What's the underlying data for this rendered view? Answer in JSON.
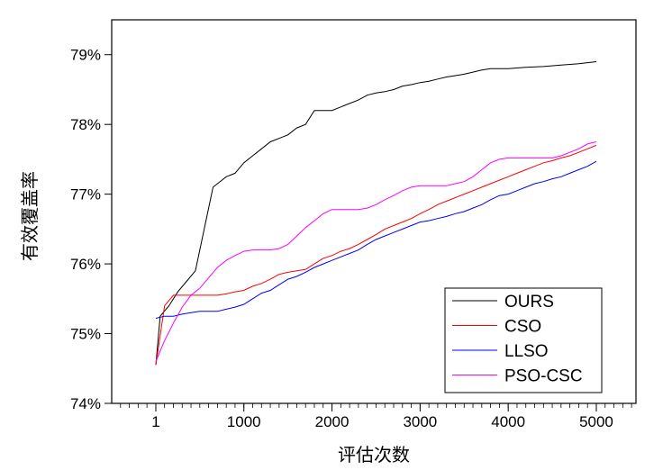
{
  "chart_data": {
    "type": "line",
    "title": "",
    "xlabel": "评估次数",
    "ylabel": "有效覆盖率",
    "xlim": [
      -500,
      5450
    ],
    "ylim": [
      74,
      79.5
    ],
    "x_ticks": [
      1,
      1000,
      2000,
      3000,
      4000,
      5000
    ],
    "x_tick_labels": [
      "1",
      "1000",
      "2000",
      "3000",
      "4000",
      "5000"
    ],
    "y_ticks": [
      74,
      75,
      76,
      77,
      78,
      79
    ],
    "y_tick_labels": [
      "74%",
      "75%",
      "76%",
      "77%",
      "78%",
      "79%"
    ],
    "grid": false,
    "legend_position": "bottom-right",
    "series": [
      {
        "name": "OURS",
        "color": "#000000",
        "points": [
          [
            1,
            74.55
          ],
          [
            50,
            75.25
          ],
          [
            150,
            75.4
          ],
          [
            250,
            75.6
          ],
          [
            350,
            75.75
          ],
          [
            450,
            75.9
          ],
          [
            500,
            76.2
          ],
          [
            550,
            76.5
          ],
          [
            600,
            76.8
          ],
          [
            650,
            77.1
          ],
          [
            700,
            77.15
          ],
          [
            750,
            77.2
          ],
          [
            800,
            77.25
          ],
          [
            900,
            77.3
          ],
          [
            1000,
            77.45
          ],
          [
            1100,
            77.55
          ],
          [
            1200,
            77.65
          ],
          [
            1300,
            77.75
          ],
          [
            1400,
            77.8
          ],
          [
            1500,
            77.85
          ],
          [
            1600,
            77.95
          ],
          [
            1700,
            78.0
          ],
          [
            1800,
            78.2
          ],
          [
            1900,
            78.2
          ],
          [
            2000,
            78.2
          ],
          [
            2100,
            78.25
          ],
          [
            2200,
            78.3
          ],
          [
            2300,
            78.35
          ],
          [
            2400,
            78.42
          ],
          [
            2500,
            78.45
          ],
          [
            2600,
            78.47
          ],
          [
            2700,
            78.5
          ],
          [
            2800,
            78.55
          ],
          [
            2900,
            78.57
          ],
          [
            3000,
            78.6
          ],
          [
            3100,
            78.62
          ],
          [
            3200,
            78.65
          ],
          [
            3300,
            78.68
          ],
          [
            3400,
            78.7
          ],
          [
            3500,
            78.72
          ],
          [
            3600,
            78.75
          ],
          [
            3700,
            78.78
          ],
          [
            3800,
            78.8
          ],
          [
            3900,
            78.8
          ],
          [
            4000,
            78.8
          ],
          [
            4200,
            78.82
          ],
          [
            4400,
            78.83
          ],
          [
            4600,
            78.85
          ],
          [
            4800,
            78.87
          ],
          [
            5000,
            78.9
          ]
        ]
      },
      {
        "name": "CSO",
        "color": "#ff0000",
        "points": [
          [
            1,
            74.55
          ],
          [
            100,
            75.4
          ],
          [
            200,
            75.55
          ],
          [
            300,
            75.55
          ],
          [
            400,
            75.55
          ],
          [
            500,
            75.55
          ],
          [
            600,
            75.55
          ],
          [
            700,
            75.55
          ],
          [
            800,
            75.57
          ],
          [
            900,
            75.6
          ],
          [
            1000,
            75.62
          ],
          [
            1100,
            75.68
          ],
          [
            1200,
            75.72
          ],
          [
            1300,
            75.78
          ],
          [
            1400,
            75.85
          ],
          [
            1500,
            75.88
          ],
          [
            1600,
            75.9
          ],
          [
            1700,
            75.92
          ],
          [
            1800,
            76.0
          ],
          [
            1900,
            76.08
          ],
          [
            2000,
            76.12
          ],
          [
            2100,
            76.18
          ],
          [
            2200,
            76.22
          ],
          [
            2300,
            76.28
          ],
          [
            2400,
            76.35
          ],
          [
            2500,
            76.42
          ],
          [
            2600,
            76.5
          ],
          [
            2700,
            76.55
          ],
          [
            2800,
            76.6
          ],
          [
            2900,
            76.65
          ],
          [
            3000,
            76.72
          ],
          [
            3100,
            76.78
          ],
          [
            3200,
            76.85
          ],
          [
            3300,
            76.9
          ],
          [
            3400,
            76.95
          ],
          [
            3500,
            77.0
          ],
          [
            3600,
            77.05
          ],
          [
            3700,
            77.1
          ],
          [
            3800,
            77.15
          ],
          [
            3900,
            77.2
          ],
          [
            4000,
            77.25
          ],
          [
            4100,
            77.3
          ],
          [
            4200,
            77.35
          ],
          [
            4300,
            77.4
          ],
          [
            4400,
            77.45
          ],
          [
            4500,
            77.48
          ],
          [
            4600,
            77.52
          ],
          [
            4700,
            77.55
          ],
          [
            4800,
            77.6
          ],
          [
            4900,
            77.65
          ],
          [
            5000,
            77.7
          ]
        ]
      },
      {
        "name": "LLSO",
        "color": "#0000ff",
        "points": [
          [
            1,
            75.22
          ],
          [
            100,
            75.25
          ],
          [
            200,
            75.25
          ],
          [
            300,
            75.28
          ],
          [
            400,
            75.3
          ],
          [
            500,
            75.32
          ],
          [
            600,
            75.32
          ],
          [
            700,
            75.32
          ],
          [
            800,
            75.35
          ],
          [
            900,
            75.38
          ],
          [
            1000,
            75.42
          ],
          [
            1100,
            75.5
          ],
          [
            1200,
            75.58
          ],
          [
            1300,
            75.62
          ],
          [
            1400,
            75.7
          ],
          [
            1500,
            75.78
          ],
          [
            1600,
            75.82
          ],
          [
            1700,
            75.88
          ],
          [
            1800,
            75.95
          ],
          [
            1900,
            76.0
          ],
          [
            2000,
            76.05
          ],
          [
            2100,
            76.1
          ],
          [
            2200,
            76.15
          ],
          [
            2300,
            76.2
          ],
          [
            2400,
            76.28
          ],
          [
            2500,
            76.35
          ],
          [
            2600,
            76.4
          ],
          [
            2700,
            76.45
          ],
          [
            2800,
            76.5
          ],
          [
            2900,
            76.55
          ],
          [
            3000,
            76.6
          ],
          [
            3100,
            76.62
          ],
          [
            3200,
            76.65
          ],
          [
            3300,
            76.68
          ],
          [
            3400,
            76.72
          ],
          [
            3500,
            76.75
          ],
          [
            3600,
            76.8
          ],
          [
            3700,
            76.85
          ],
          [
            3800,
            76.92
          ],
          [
            3900,
            76.98
          ],
          [
            4000,
            77.0
          ],
          [
            4100,
            77.05
          ],
          [
            4200,
            77.1
          ],
          [
            4300,
            77.15
          ],
          [
            4400,
            77.18
          ],
          [
            4500,
            77.22
          ],
          [
            4600,
            77.25
          ],
          [
            4700,
            77.3
          ],
          [
            4800,
            77.35
          ],
          [
            4900,
            77.4
          ],
          [
            5000,
            77.47
          ]
        ]
      },
      {
        "name": "PSO-CSC",
        "color": "#ff00ff",
        "points": [
          [
            1,
            74.6
          ],
          [
            100,
            74.9
          ],
          [
            200,
            75.15
          ],
          [
            300,
            75.38
          ],
          [
            400,
            75.55
          ],
          [
            500,
            75.65
          ],
          [
            600,
            75.8
          ],
          [
            700,
            75.95
          ],
          [
            800,
            76.05
          ],
          [
            900,
            76.12
          ],
          [
            1000,
            76.18
          ],
          [
            1100,
            76.2
          ],
          [
            1200,
            76.2
          ],
          [
            1300,
            76.2
          ],
          [
            1400,
            76.22
          ],
          [
            1500,
            76.28
          ],
          [
            1600,
            76.4
          ],
          [
            1700,
            76.52
          ],
          [
            1800,
            76.62
          ],
          [
            1900,
            76.72
          ],
          [
            2000,
            76.78
          ],
          [
            2100,
            76.78
          ],
          [
            2200,
            76.78
          ],
          [
            2300,
            76.78
          ],
          [
            2400,
            76.8
          ],
          [
            2500,
            76.85
          ],
          [
            2600,
            76.92
          ],
          [
            2700,
            76.98
          ],
          [
            2800,
            77.05
          ],
          [
            2900,
            77.1
          ],
          [
            3000,
            77.12
          ],
          [
            3100,
            77.12
          ],
          [
            3200,
            77.12
          ],
          [
            3300,
            77.12
          ],
          [
            3400,
            77.15
          ],
          [
            3500,
            77.18
          ],
          [
            3600,
            77.25
          ],
          [
            3700,
            77.35
          ],
          [
            3800,
            77.45
          ],
          [
            3900,
            77.5
          ],
          [
            4000,
            77.52
          ],
          [
            4100,
            77.52
          ],
          [
            4200,
            77.52
          ],
          [
            4300,
            77.52
          ],
          [
            4400,
            77.52
          ],
          [
            4500,
            77.52
          ],
          [
            4600,
            77.55
          ],
          [
            4700,
            77.6
          ],
          [
            4800,
            77.65
          ],
          [
            4900,
            77.72
          ],
          [
            5000,
            77.75
          ]
        ]
      }
    ]
  }
}
